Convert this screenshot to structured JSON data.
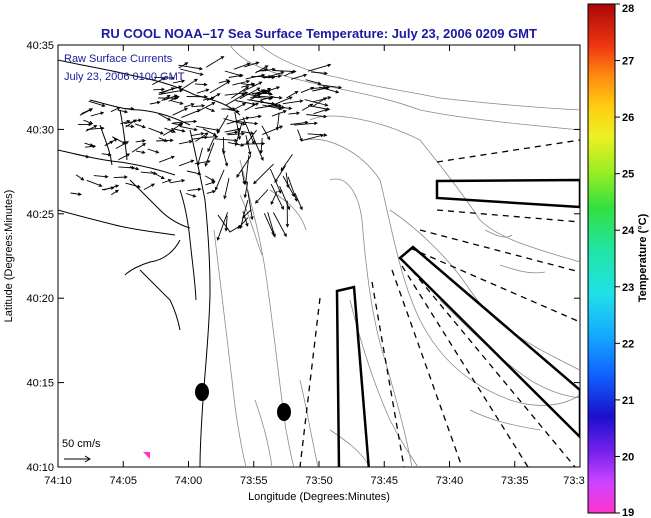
{
  "title": "RU COOL  NOAA–17  Sea Surface Temperature:  July 23, 2006 0209 GMT",
  "legend": {
    "line1": "Raw Surface Currents",
    "line2": "July 23, 2006 0100 GMT"
  },
  "scale_label": "50 cm/s",
  "chart_data": {
    "type": "map",
    "xlabel": "Longitude (Degrees:Minutes)",
    "ylabel": "Latitude (Degrees:Minutes)",
    "x_ticks": [
      "74:10",
      "74:05",
      "74:00",
      "73:55",
      "73:50",
      "73:45",
      "73:40",
      "73:35",
      "73:3"
    ],
    "y_ticks": [
      "40:35",
      "40:30",
      "40:25",
      "40:20",
      "40:15",
      "40:10"
    ],
    "colorbar": {
      "label": "Temperature (°C)",
      "ticks": [
        "28",
        "27",
        "26",
        "25",
        "24",
        "23",
        "22",
        "21",
        "20",
        "19"
      ],
      "range": [
        19,
        28
      ]
    }
  }
}
